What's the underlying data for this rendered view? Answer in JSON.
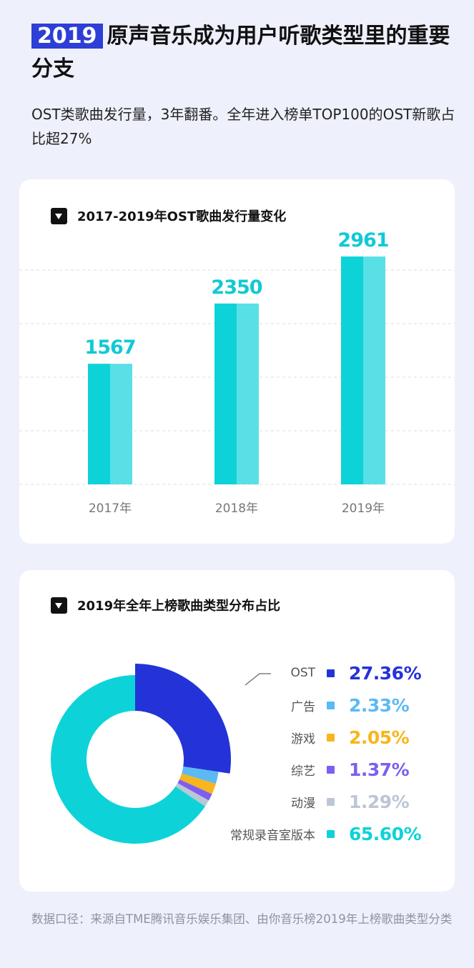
{
  "header": {
    "year_tag": "2019",
    "title_rest": "原声音乐成为用户听歌类型里的重要分支",
    "subtitle": "OST类歌曲发行量，3年翻番。全年进入榜单TOP100的OST新歌占比超27%"
  },
  "chart_data": [
    {
      "type": "bar",
      "title": "2017-2019年OST歌曲发行量变化",
      "categories": [
        "2017年",
        "2018年",
        "2019年"
      ],
      "values": [
        1567,
        2350,
        2961
      ],
      "data_labels": [
        "1567",
        "2350",
        "2961"
      ],
      "ylim": [
        0,
        3500
      ],
      "grid": true,
      "colors": {
        "bar_left": "#0dd3d8",
        "bar_right": "#58e0e6",
        "label": "#11c9d6"
      }
    },
    {
      "type": "pie",
      "title": "2019年全年上榜歌曲类型分布占比",
      "labels": [
        "OST",
        "广告",
        "游戏",
        "综艺",
        "动漫",
        "常规录音室版本"
      ],
      "values": [
        27.36,
        2.33,
        2.05,
        1.37,
        1.29,
        65.6
      ],
      "value_labels": [
        "27.36%",
        "2.33%",
        "2.05%",
        "1.37%",
        "1.29%",
        "65.60%"
      ],
      "colors": [
        "#2433d8",
        "#5bbaf4",
        "#f8b51c",
        "#7d5ff0",
        "#bcc6d4",
        "#0dd3d8"
      ]
    }
  ],
  "footer": "数据口径：来源自TME腾讯音乐娱乐集团、由你音乐榜2019年上榜歌曲类型分类"
}
